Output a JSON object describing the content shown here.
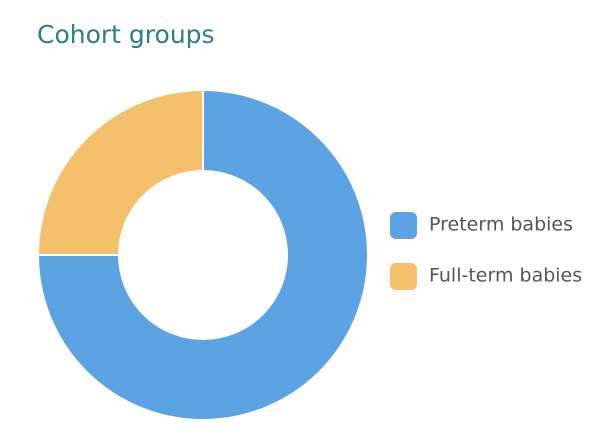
{
  "chart_data": {
    "type": "donut",
    "title": "Cohort groups",
    "categories": [
      "Preterm babies",
      "Full-term babies"
    ],
    "values": [
      75,
      25
    ],
    "colors": [
      "#5ba3e2",
      "#f5c06c"
    ],
    "legend": "right"
  }
}
